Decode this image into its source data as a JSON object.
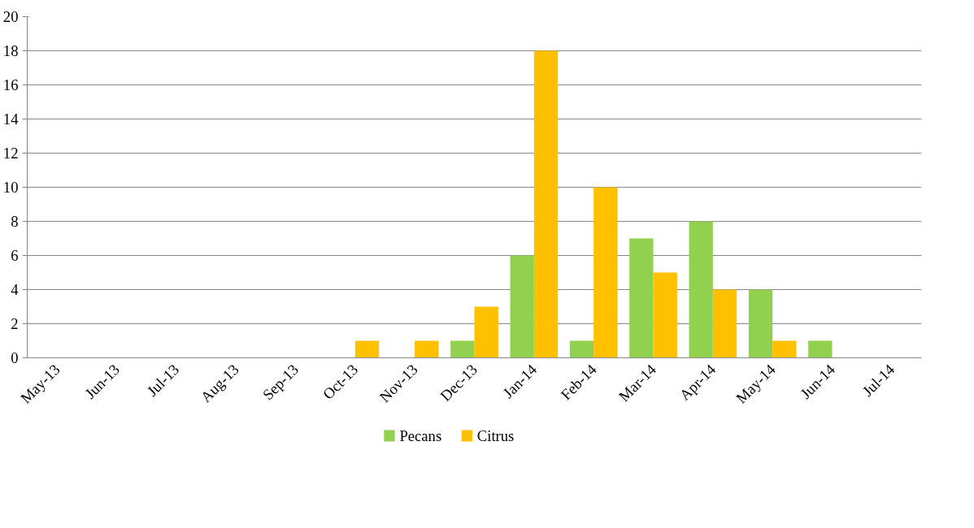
{
  "chart_data": {
    "type": "bar",
    "categories": [
      "May-13",
      "Jun-13",
      "Jul-13",
      "Aug-13",
      "Sep-13",
      "Oct-13",
      "Nov-13",
      "Dec-13",
      "Jan-14",
      "Feb-14",
      "Mar-14",
      "Apr-14",
      "May-14",
      "Jun-14",
      "Jul-14"
    ],
    "series": [
      {
        "name": "Pecans",
        "color": "#92d050",
        "values": [
          0,
          0,
          0,
          0,
          0,
          0,
          0,
          1,
          6,
          1,
          7,
          8,
          4,
          1,
          0
        ]
      },
      {
        "name": "Citrus",
        "color": "#ffc000",
        "values": [
          0,
          0,
          0,
          0,
          0,
          1,
          1,
          3,
          18,
          10,
          5,
          4,
          1,
          0,
          0
        ]
      }
    ],
    "ylim": [
      0,
      20
    ],
    "yticks": [
      0,
      2,
      4,
      6,
      8,
      10,
      12,
      14,
      16,
      18,
      20
    ],
    "grid": "y",
    "legend": "bottom"
  }
}
